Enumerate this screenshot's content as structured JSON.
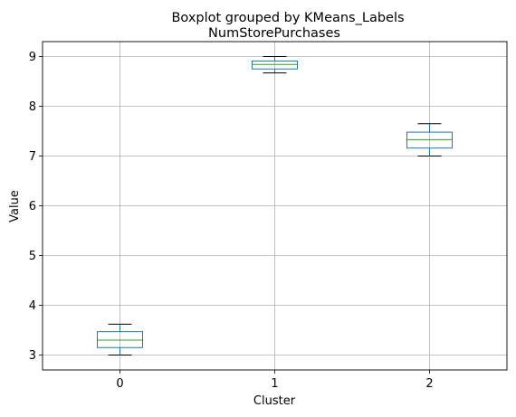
{
  "chart_data": {
    "type": "box",
    "suptitle": "Boxplot grouped by KMeans_Labels",
    "title": "NumStorePurchases",
    "xlabel": "Cluster",
    "ylabel": "Value",
    "ylim": [
      2.7,
      9.3
    ],
    "yticks": [
      3,
      4,
      5,
      6,
      7,
      8,
      9
    ],
    "grid": true,
    "categories": [
      "0",
      "1",
      "2"
    ],
    "boxes": [
      {
        "category": "0",
        "whisker_low": 3.0,
        "q1": 3.15,
        "median": 3.3,
        "q3": 3.47,
        "whisker_high": 3.62
      },
      {
        "category": "1",
        "whisker_low": 8.67,
        "q1": 8.75,
        "median": 8.84,
        "q3": 8.91,
        "whisker_high": 9.0
      },
      {
        "category": "2",
        "whisker_low": 7.0,
        "q1": 7.16,
        "median": 7.33,
        "q3": 7.48,
        "whisker_high": 7.65
      }
    ],
    "colors": {
      "box": "#1f77b4",
      "median": "#2ca02c",
      "whisker": "#000000",
      "grid": "#b0b0b0"
    }
  }
}
